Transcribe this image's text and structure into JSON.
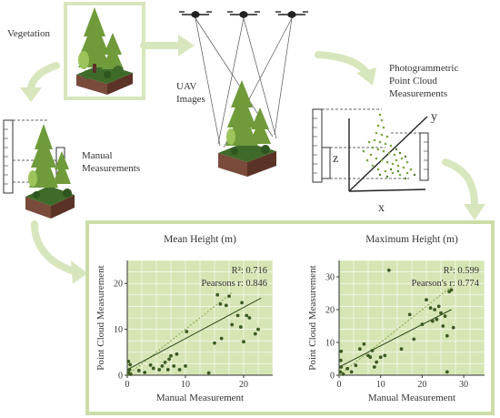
{
  "labels": {
    "vegetation": "Vegetation",
    "uav_line1": "UAV",
    "uav_line2": "Images",
    "photo_line1": "Photogrammetric",
    "photo_line2": "Point Cloud",
    "photo_line3": "Measurements",
    "manual_line1": "Manual",
    "manual_line2": "Measurements",
    "axis_x": "x",
    "axis_y": "y",
    "axis_z": "z"
  },
  "colors": {
    "arrow": "#d8e6bd",
    "panel_fill": "#d6e5b4",
    "panel_border": "#cbdca6",
    "dark_green": "#3f6b2a",
    "mid_green": "#6f9b3a",
    "light_green": "#9cc45a",
    "soil": "#7a4a3a",
    "soil_dark": "#5a3326"
  },
  "chart_data": [
    {
      "type": "scatter",
      "title": "Mean Height (m)",
      "xlabel": "Manual Measurement",
      "ylabel": "Point Cloud Measurement",
      "xlim": [
        0,
        25
      ],
      "ylim": [
        0,
        25
      ],
      "xticks": [
        0,
        10,
        20
      ],
      "yticks": [
        0,
        10,
        20
      ],
      "stats": [
        "R²: 0.716",
        "Pearsons r: 0.846"
      ],
      "fit": [
        [
          0,
          1.2
        ],
        [
          23,
          16.8
        ]
      ],
      "identity": [
        [
          0,
          0
        ],
        [
          18,
          18
        ]
      ],
      "points": [
        [
          0.2,
          0.5
        ],
        [
          0.4,
          1.2
        ],
        [
          0.5,
          2.3
        ],
        [
          0.2,
          3.0
        ],
        [
          0.6,
          0.2
        ],
        [
          2.0,
          1.0
        ],
        [
          3.0,
          0.6
        ],
        [
          4.0,
          2.2
        ],
        [
          4.5,
          1.5
        ],
        [
          5.5,
          1.2
        ],
        [
          6.0,
          2.0
        ],
        [
          6.5,
          2.8
        ],
        [
          7.0,
          1.2
        ],
        [
          7.2,
          3.5
        ],
        [
          7.5,
          4.2
        ],
        [
          8.0,
          2.0
        ],
        [
          8.5,
          4.6
        ],
        [
          9.0,
          1.2
        ],
        [
          10.0,
          2.0
        ],
        [
          10.2,
          9.5
        ],
        [
          14.0,
          0.5
        ],
        [
          15.0,
          7.0
        ],
        [
          15.5,
          17.5
        ],
        [
          16.0,
          15.5
        ],
        [
          16.2,
          8.0
        ],
        [
          17.0,
          15.2
        ],
        [
          17.5,
          17.2
        ],
        [
          18.0,
          11.0
        ],
        [
          19.0,
          13.0
        ],
        [
          19.5,
          10.5
        ],
        [
          19.7,
          15.8
        ],
        [
          20.0,
          7.3
        ],
        [
          20.5,
          13.0
        ],
        [
          21.0,
          12.5
        ],
        [
          22.0,
          9.0
        ],
        [
          22.5,
          10.0
        ]
      ]
    },
    {
      "type": "scatter",
      "title": "Maximum Height (m)",
      "xlabel": "Manual Measurement",
      "ylabel": "Point Cloud Measurement",
      "xlim": [
        0,
        35
      ],
      "ylim": [
        0,
        35
      ],
      "xticks": [
        0,
        10,
        20,
        30
      ],
      "yticks": [
        0,
        10,
        20,
        30
      ],
      "stats": [
        "R²: 0.599",
        "Pearson's r: 0.774"
      ],
      "fit": [
        [
          0,
          2.5
        ],
        [
          27,
          20.0
        ]
      ],
      "identity": [
        [
          0,
          0
        ],
        [
          27,
          27
        ]
      ],
      "points": [
        [
          0.3,
          1.0
        ],
        [
          0.5,
          2.5
        ],
        [
          0.4,
          4.5
        ],
        [
          0.5,
          7.3
        ],
        [
          1.0,
          0.3
        ],
        [
          2.0,
          2.0
        ],
        [
          3.0,
          1.0
        ],
        [
          4.0,
          3.0
        ],
        [
          5.0,
          8.0
        ],
        [
          6.0,
          9.5
        ],
        [
          7.0,
          6.0
        ],
        [
          7.5,
          5.5
        ],
        [
          8.0,
          7.5
        ],
        [
          8.5,
          2.5
        ],
        [
          9.0,
          4.0
        ],
        [
          10.0,
          5.5
        ],
        [
          11.0,
          6.0
        ],
        [
          12.0,
          32.0
        ],
        [
          15.0,
          8.0
        ],
        [
          17.0,
          18.5
        ],
        [
          18.0,
          11.0
        ],
        [
          20.0,
          15.5
        ],
        [
          21.0,
          23.0
        ],
        [
          22.0,
          20.5
        ],
        [
          22.5,
          16.5
        ],
        [
          23.0,
          20.0
        ],
        [
          23.5,
          17.0
        ],
        [
          24.0,
          21.0
        ],
        [
          24.5,
          19.0
        ],
        [
          25.0,
          15.0
        ],
        [
          25.5,
          18.0
        ],
        [
          26.0,
          12.0
        ],
        [
          26.5,
          25.5
        ],
        [
          27.0,
          26.0
        ],
        [
          26.0,
          1.0
        ],
        [
          27.5,
          14.5
        ]
      ]
    }
  ]
}
